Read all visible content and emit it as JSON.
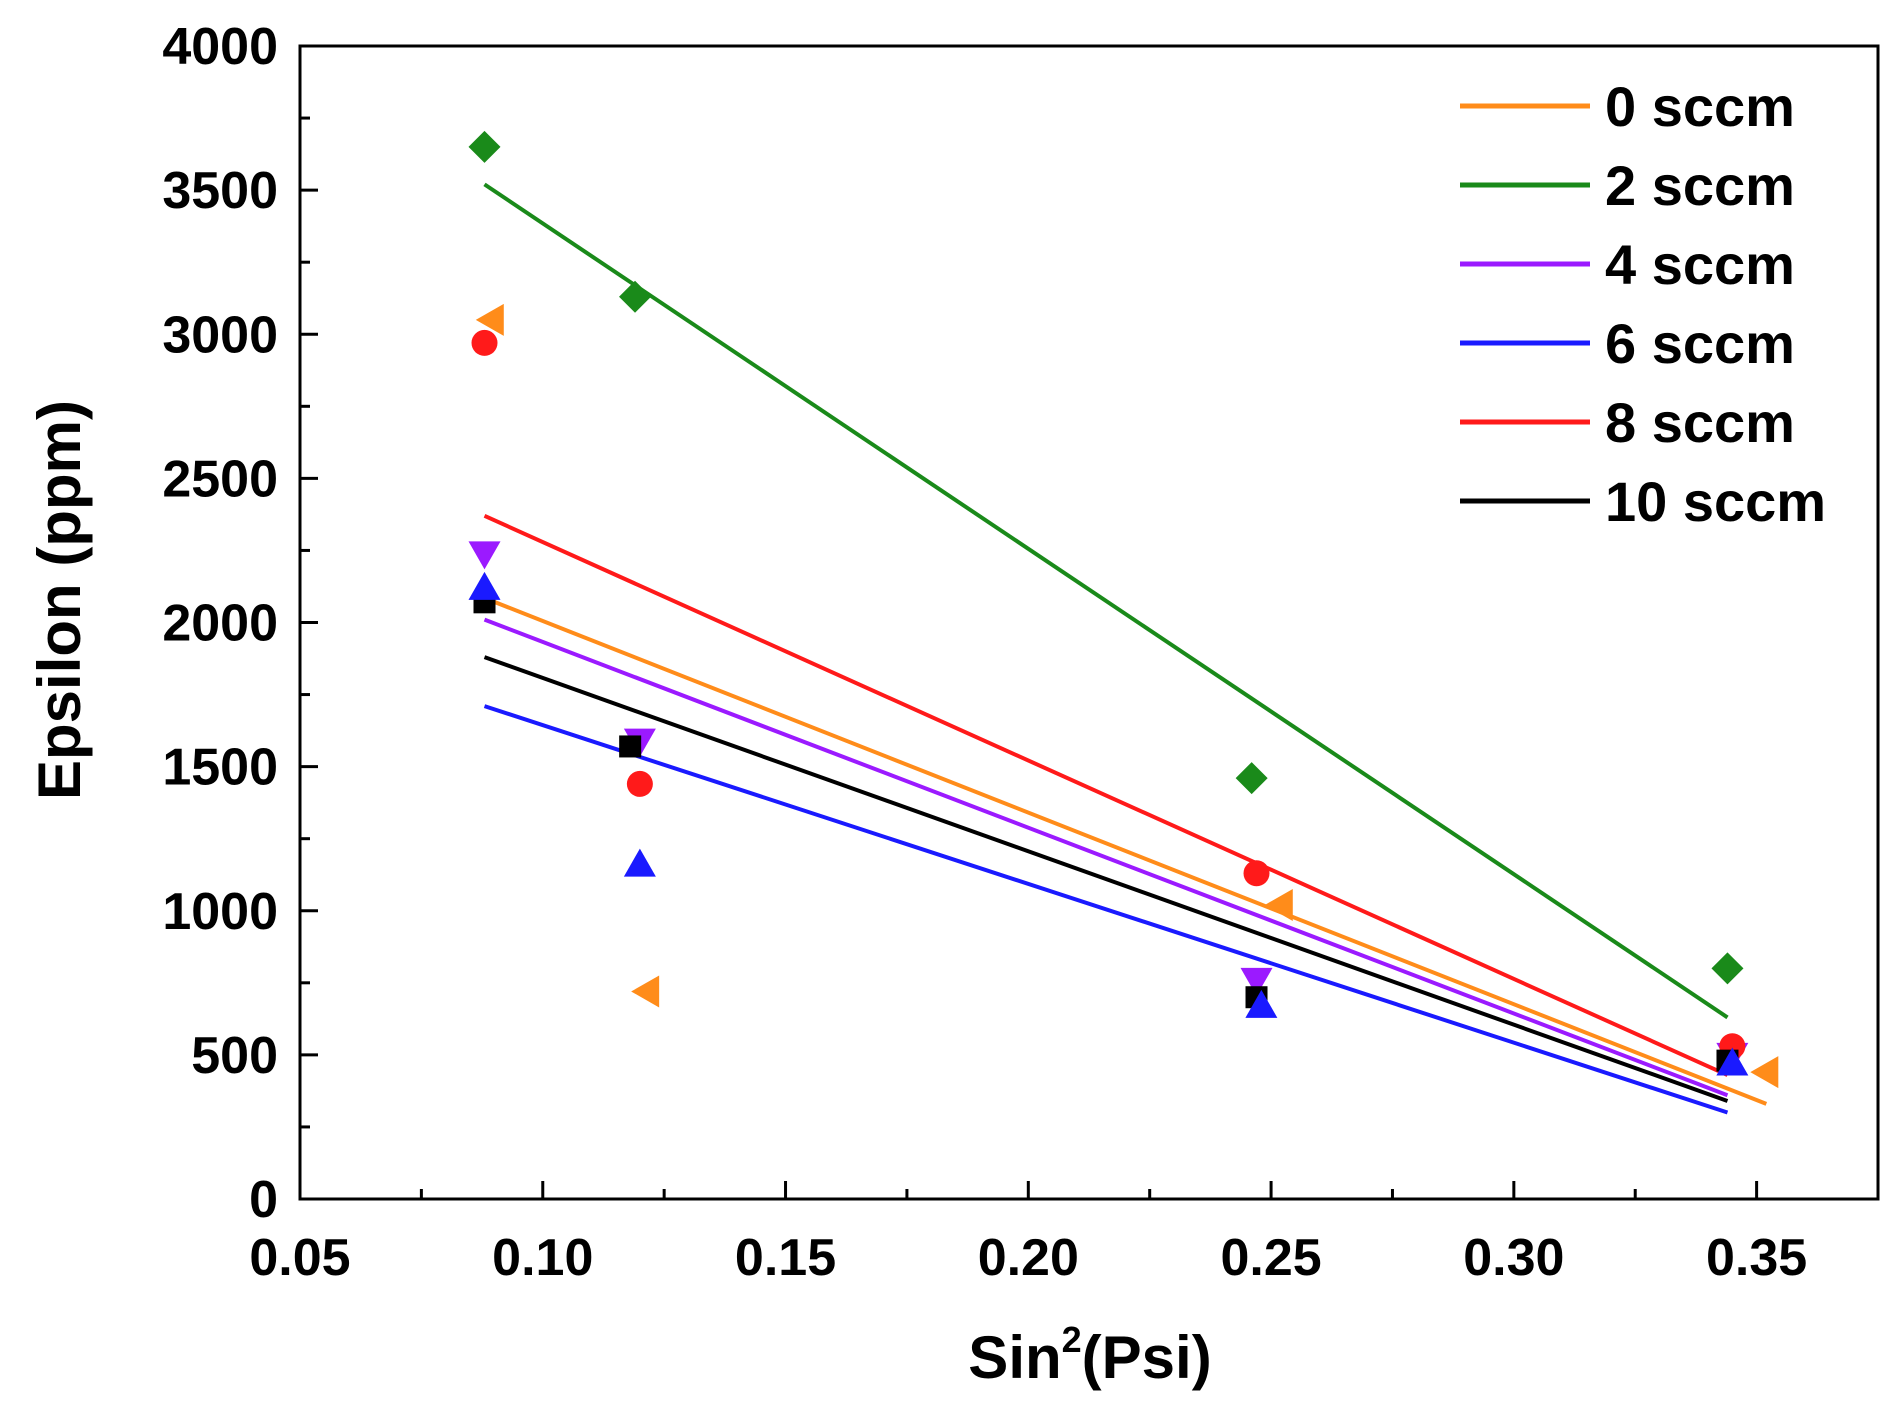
{
  "chart_data": {
    "type": "scatter",
    "xlabel_prefix": "Sin",
    "xlabel_sup": "2",
    "xlabel_suffix": "(Psi)",
    "ylabel": "Epsilon (ppm)",
    "xlim": [
      0.05,
      0.375
    ],
    "ylim": [
      0,
      4000
    ],
    "xticks": [
      "0.05",
      "0.10",
      "0.15",
      "0.20",
      "0.25",
      "0.30",
      "0.35"
    ],
    "yticks": [
      "0",
      "500",
      "1000",
      "1500",
      "2000",
      "2500",
      "3000",
      "3500",
      "4000"
    ],
    "legend_position": "top-right",
    "series": [
      {
        "name": "0 sccm",
        "color": "#ff8c1a",
        "marker": "triangle-left",
        "x": [
          0.0895,
          0.1215,
          0.252,
          0.352
        ],
        "y": [
          3050,
          720,
          1020,
          440
        ],
        "fit": {
          "x": [
            0.088,
            0.352
          ],
          "y": [
            2085,
            330
          ]
        }
      },
      {
        "name": "2 sccm",
        "color": "#1a8a1a",
        "marker": "diamond",
        "x": [
          0.088,
          0.119,
          0.246,
          0.344
        ],
        "y": [
          3650,
          3130,
          1460,
          800
        ],
        "fit": {
          "x": [
            0.088,
            0.344
          ],
          "y": [
            3520,
            630
          ]
        }
      },
      {
        "name": "4 sccm",
        "color": "#9b1aff",
        "marker": "triangle-down",
        "x": [
          0.088,
          0.12,
          0.247,
          0.345
        ],
        "y": [
          2240,
          1590,
          760,
          500
        ],
        "fit": {
          "x": [
            0.088,
            0.344
          ],
          "y": [
            2010,
            360
          ]
        }
      },
      {
        "name": "6 sccm",
        "color": "#1a1aff",
        "marker": "triangle-up",
        "x": [
          0.088,
          0.12,
          0.248,
          0.345
        ],
        "y": [
          2120,
          1160,
          670,
          470
        ],
        "fit": {
          "x": [
            0.088,
            0.344
          ],
          "y": [
            1710,
            300
          ]
        }
      },
      {
        "name": "8 sccm",
        "color": "#ff1a1a",
        "marker": "circle",
        "x": [
          0.088,
          0.12,
          0.247,
          0.345
        ],
        "y": [
          2970,
          1440,
          1130,
          530
        ],
        "fit": {
          "x": [
            0.088,
            0.344
          ],
          "y": [
            2370,
            430
          ]
        }
      },
      {
        "name": "10 sccm",
        "color": "#000000",
        "marker": "square",
        "x": [
          0.088,
          0.118,
          0.247,
          0.344
        ],
        "y": [
          2070,
          1570,
          700,
          480
        ],
        "fit": {
          "x": [
            0.088,
            0.344
          ],
          "y": [
            1880,
            340
          ]
        }
      }
    ]
  }
}
